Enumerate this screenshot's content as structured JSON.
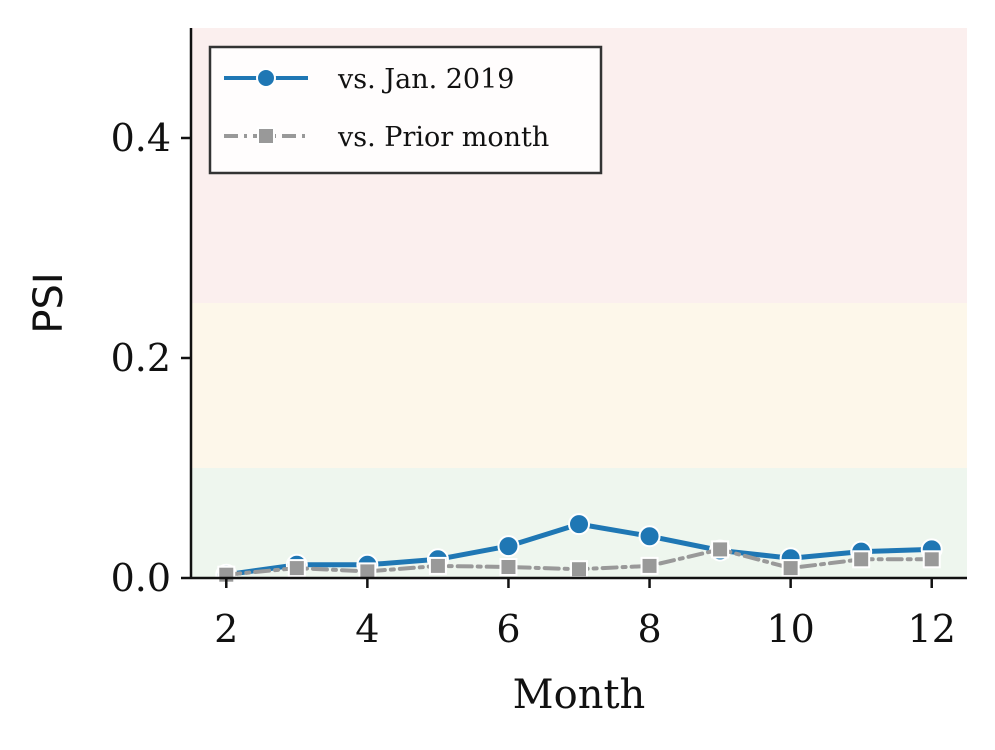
{
  "chart_data": {
    "type": "line",
    "title": "",
    "xlabel": "Month",
    "ylabel": "PSI",
    "xlim": [
      1.5,
      12.5
    ],
    "ylim": [
      0,
      0.5
    ],
    "xticks": [
      2,
      4,
      6,
      8,
      10,
      12
    ],
    "xtick_labels": [
      "2",
      "4",
      "6",
      "8",
      "10",
      "12"
    ],
    "yticks": [
      0.0,
      0.2,
      0.4
    ],
    "ytick_labels": [
      "0.0",
      "0.2",
      "0.4"
    ],
    "bands": [
      {
        "name": "low-psi-band",
        "from": 0,
        "to": 0.1,
        "color": "#eef6ee"
      },
      {
        "name": "medium-psi-band",
        "from": 0.1,
        "to": 0.25,
        "color": "#fdf7ea"
      },
      {
        "name": "high-psi-band",
        "from": 0.25,
        "to": 0.5,
        "color": "#fbefee"
      }
    ],
    "legend_position": "top-left",
    "series": [
      {
        "name": "vs. Jan. 2019",
        "color": "#1f77b4",
        "marker": "circle",
        "linestyle": "solid",
        "x": [
          2,
          3,
          4,
          5,
          6,
          7,
          8,
          9,
          10,
          11,
          12
        ],
        "values": [
          0.003,
          0.012,
          0.012,
          0.017,
          0.029,
          0.049,
          0.038,
          0.025,
          0.018,
          0.024,
          0.026
        ]
      },
      {
        "name": "vs. Prior month",
        "color": "#999999",
        "marker": "square",
        "linestyle": "dashdot",
        "x": [
          2,
          3,
          4,
          5,
          6,
          7,
          8,
          9,
          10,
          11,
          12
        ],
        "values": [
          0.003,
          0.009,
          0.006,
          0.011,
          0.01,
          0.008,
          0.011,
          0.026,
          0.009,
          0.017,
          0.017
        ]
      }
    ]
  }
}
